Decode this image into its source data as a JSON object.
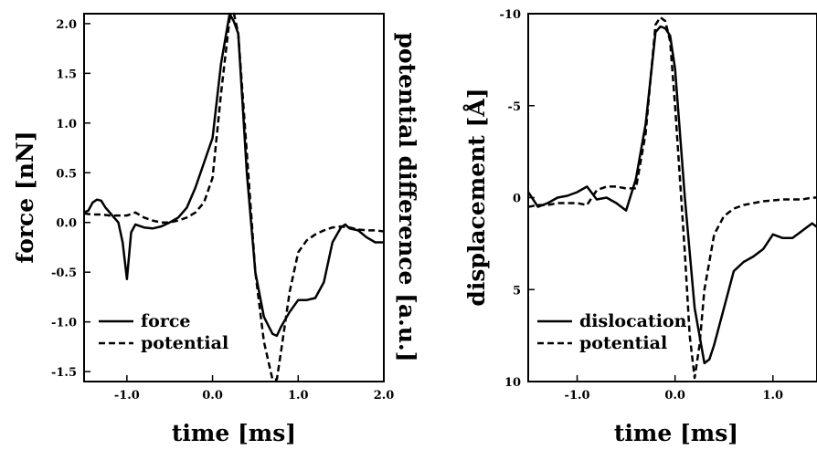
{
  "chart_data": [
    {
      "type": "line",
      "xlabel": "time [ms]",
      "ylabel": "force [nN]",
      "ylabel_right": "potential difference [a.u.]",
      "xlim": [
        -1.5,
        2.0
      ],
      "ylim": [
        -1.6,
        2.1
      ],
      "x_ticks": [
        -1.0,
        0.0,
        1.0,
        2.0
      ],
      "x_tick_labels": [
        "-1.0",
        "0.0",
        "1.0",
        "2.0"
      ],
      "y_ticks": [
        2.0,
        1.5,
        1.0,
        0.5,
        0.0,
        -0.5,
        -1.0,
        -1.5
      ],
      "y_tick_labels": [
        "2.0",
        "1.5",
        "1.0",
        "0.5",
        "0.0",
        "-0.5",
        "-1.0",
        "-1.5"
      ],
      "grid": false,
      "legend_position": "bottom-left",
      "series": [
        {
          "name": "force",
          "style": "solid",
          "x": [
            -1.5,
            -1.45,
            -1.4,
            -1.35,
            -1.3,
            -1.25,
            -1.2,
            -1.15,
            -1.1,
            -1.05,
            -1.0,
            -0.95,
            -0.9,
            -0.8,
            -0.7,
            -0.6,
            -0.5,
            -0.4,
            -0.3,
            -0.2,
            -0.1,
            0.0,
            0.1,
            0.2,
            0.25,
            0.3,
            0.4,
            0.5,
            0.6,
            0.7,
            0.75,
            0.8,
            0.9,
            1.0,
            1.1,
            1.2,
            1.3,
            1.4,
            1.5,
            1.55,
            1.6,
            1.7,
            1.8,
            1.9,
            2.0
          ],
          "y": [
            0.1,
            0.12,
            0.2,
            0.23,
            0.22,
            0.15,
            0.1,
            0.05,
            0.0,
            -0.2,
            -0.57,
            -0.1,
            -0.02,
            -0.05,
            -0.06,
            -0.04,
            0.0,
            0.05,
            0.15,
            0.35,
            0.6,
            0.85,
            1.6,
            2.1,
            2.02,
            1.9,
            0.5,
            -0.5,
            -0.95,
            -1.12,
            -1.14,
            -1.05,
            -0.9,
            -0.78,
            -0.78,
            -0.76,
            -0.6,
            -0.2,
            -0.05,
            -0.02,
            -0.06,
            -0.08,
            -0.15,
            -0.2,
            -0.2
          ]
        },
        {
          "name": "potential",
          "style": "dashed",
          "x": [
            -1.5,
            -1.4,
            -1.3,
            -1.2,
            -1.1,
            -1.0,
            -0.9,
            -0.8,
            -0.7,
            -0.6,
            -0.5,
            -0.4,
            -0.3,
            -0.2,
            -0.1,
            0.0,
            0.1,
            0.2,
            0.25,
            0.3,
            0.4,
            0.5,
            0.6,
            0.7,
            0.75,
            0.8,
            0.9,
            1.0,
            1.1,
            1.2,
            1.3,
            1.4,
            1.5,
            1.6,
            1.7,
            1.8,
            1.9,
            2.0
          ],
          "y": [
            0.09,
            0.08,
            0.08,
            0.07,
            0.07,
            0.07,
            0.1,
            0.05,
            0.02,
            0.0,
            0.0,
            0.02,
            0.05,
            0.1,
            0.2,
            0.45,
            1.3,
            2.05,
            2.1,
            1.9,
            0.7,
            -0.5,
            -1.2,
            -1.58,
            -1.58,
            -1.3,
            -0.7,
            -0.3,
            -0.18,
            -0.12,
            -0.08,
            -0.05,
            -0.04,
            -0.05,
            -0.07,
            -0.08,
            -0.08,
            -0.09
          ]
        }
      ]
    },
    {
      "type": "line",
      "xlabel": "time [ms]",
      "ylabel": "displacement [Å]",
      "xlim": [
        -1.5,
        1.45
      ],
      "ylim": [
        10,
        -10
      ],
      "x_ticks": [
        -1.0,
        0.0,
        1.0
      ],
      "x_tick_labels": [
        "-1.0",
        "0.0",
        "1.0"
      ],
      "y_ticks": [
        -10,
        -5,
        0,
        5,
        10
      ],
      "y_tick_labels": [
        "-10",
        "-5",
        "0",
        "5",
        "10"
      ],
      "grid": false,
      "legend_position": "bottom-left",
      "series": [
        {
          "name": "dislocation",
          "style": "solid",
          "x": [
            -1.5,
            -1.4,
            -1.3,
            -1.2,
            -1.1,
            -1.0,
            -0.9,
            -0.8,
            -0.7,
            -0.6,
            -0.5,
            -0.4,
            -0.3,
            -0.2,
            -0.15,
            -0.1,
            -0.05,
            0.0,
            0.1,
            0.2,
            0.3,
            0.35,
            0.4,
            0.5,
            0.6,
            0.7,
            0.8,
            0.9,
            1.0,
            1.1,
            1.2,
            1.3,
            1.4,
            1.45
          ],
          "y": [
            -0.3,
            0.5,
            0.3,
            0.0,
            -0.1,
            -0.3,
            -0.6,
            0.1,
            0.0,
            0.3,
            0.7,
            -1.0,
            -4.0,
            -9.0,
            -9.3,
            -9.2,
            -8.8,
            -7.0,
            0.0,
            6.0,
            9.0,
            8.8,
            8.0,
            6.0,
            4.0,
            3.5,
            3.2,
            2.8,
            2.0,
            2.2,
            2.2,
            1.8,
            1.4,
            1.6
          ]
        },
        {
          "name": "potential",
          "style": "dashed",
          "x": [
            -1.5,
            -1.4,
            -1.3,
            -1.2,
            -1.1,
            -1.0,
            -0.9,
            -0.8,
            -0.7,
            -0.6,
            -0.5,
            -0.4,
            -0.3,
            -0.2,
            -0.15,
            -0.1,
            -0.05,
            0.0,
            0.1,
            0.15,
            0.2,
            0.25,
            0.3,
            0.4,
            0.5,
            0.6,
            0.7,
            0.8,
            0.9,
            1.0,
            1.1,
            1.2,
            1.3,
            1.4,
            1.45
          ],
          "y": [
            0.5,
            0.4,
            0.4,
            0.3,
            0.3,
            0.3,
            0.4,
            -0.4,
            -0.6,
            -0.6,
            -0.5,
            -0.5,
            -3.5,
            -9.4,
            -9.8,
            -9.6,
            -8.5,
            -5.0,
            3.0,
            7.5,
            9.8,
            8.0,
            5.0,
            2.0,
            1.0,
            0.6,
            0.4,
            0.3,
            0.2,
            0.15,
            0.1,
            0.1,
            0.1,
            0.0,
            0.0
          ]
        }
      ]
    }
  ]
}
